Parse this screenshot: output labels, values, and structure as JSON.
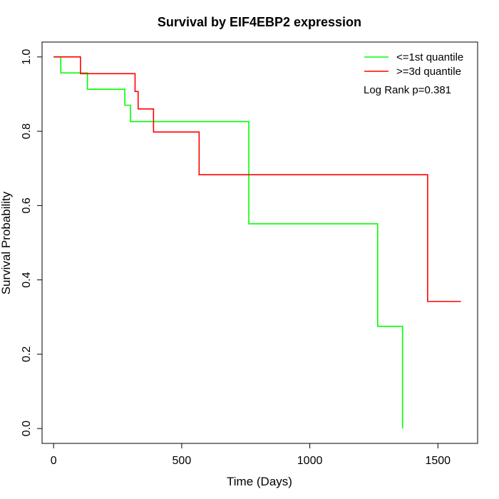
{
  "chart_data": {
    "type": "line",
    "title": "Survival by EIF4EBP2 expression",
    "xlabel": "Time (Days)",
    "ylabel": "Survival Probability",
    "xlim": [
      -45,
      1655
    ],
    "ylim": [
      -0.04,
      1.04
    ],
    "x_ticks": [
      0,
      500,
      1000,
      1500
    ],
    "y_ticks": [
      0.0,
      0.2,
      0.4,
      0.6,
      0.8,
      1.0
    ],
    "x_tick_labels": [
      "0",
      "500",
      "1000",
      "1500"
    ],
    "y_tick_labels": [
      "0.0",
      "0.2",
      "0.4",
      "0.6",
      "0.8",
      "1.0"
    ],
    "legend_position": "top-right",
    "annotation": "Log Rank p=0.381",
    "series": [
      {
        "name": "<=1st quantile",
        "color": "#00ff00",
        "step": true,
        "x": [
          0,
          28,
          132,
          278,
          300,
          762,
          1265,
          1362,
          1362
        ],
        "y": [
          1.0,
          0.957,
          0.913,
          0.87,
          0.826,
          0.551,
          0.275,
          0.275,
          0.0
        ]
      },
      {
        "name": ">=3d quantile",
        "color": "#ff0000",
        "step": true,
        "x": [
          0,
          105,
          318,
          330,
          390,
          568,
          1460,
          1590
        ],
        "y": [
          1.0,
          0.955,
          0.907,
          0.86,
          0.798,
          0.683,
          0.342,
          0.342
        ]
      }
    ]
  }
}
